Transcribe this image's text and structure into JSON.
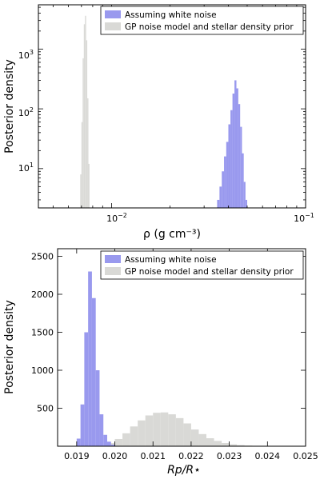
{
  "chart_data": [
    {
      "type": "bar",
      "subtype": "histogram",
      "xscale": "log",
      "yscale": "log",
      "xlabel": "ρ (g cm⁻³)",
      "ylabel": "Posterior density",
      "xlim": [
        0.0042,
        0.1
      ],
      "ylim": [
        2.2,
        5500
      ],
      "xticks": [
        {
          "value": 0.01,
          "base": "10",
          "exp": "−2"
        },
        {
          "value": 0.1,
          "base": "10",
          "exp": "−1"
        }
      ],
      "yticks": [
        {
          "value": 10,
          "base": "10",
          "exp": "1"
        },
        {
          "value": 100,
          "base": "10",
          "exp": "2"
        },
        {
          "value": 1000,
          "base": "10",
          "exp": "3"
        }
      ],
      "legend_position": "top-right",
      "series": [
        {
          "name": "Assuming white noise",
          "color": "#9999ee",
          "x": [
            0.0355,
            0.0365,
            0.0375,
            0.0385,
            0.0395,
            0.0405,
            0.0415,
            0.0425,
            0.0435,
            0.0445,
            0.0455,
            0.0465,
            0.0475,
            0.0485,
            0.0495
          ],
          "values": [
            3,
            5,
            9,
            16,
            28,
            55,
            95,
            180,
            300,
            220,
            120,
            50,
            18,
            6,
            3
          ]
        },
        {
          "name": "GP noise model and stellar density prior",
          "color": "#d9d9d6",
          "x": [
            0.00695,
            0.00705,
            0.00715,
            0.00725,
            0.00735,
            0.00745,
            0.00755,
            0.00765
          ],
          "values": [
            8,
            60,
            700,
            2600,
            3600,
            1400,
            150,
            12
          ]
        }
      ]
    },
    {
      "type": "bar",
      "subtype": "histogram",
      "xscale": "linear",
      "yscale": "linear",
      "xlabel": "Rp/R⋆",
      "ylabel": "Posterior density",
      "xlim": [
        0.0185,
        0.025
      ],
      "ylim": [
        0,
        2600
      ],
      "xticks": [
        "0.019",
        "0.020",
        "0.021",
        "0.022",
        "0.023",
        "0.024",
        "0.025"
      ],
      "yticks": [
        "500",
        "1000",
        "1500",
        "2000",
        "2500"
      ],
      "legend_position": "top-right",
      "series": [
        {
          "name": "Assuming white noise",
          "color": "#9999ee",
          "x": [
            0.01905,
            0.01915,
            0.01925,
            0.01935,
            0.01945,
            0.01955,
            0.01965,
            0.01975,
            0.01985,
            0.01995
          ],
          "values": [
            100,
            550,
            1500,
            2300,
            1950,
            1000,
            420,
            150,
            60,
            20
          ]
        },
        {
          "name": "GP noise model and stellar density prior",
          "color": "#d9d9d6",
          "x": [
            0.0195,
            0.0197,
            0.0199,
            0.0201,
            0.0203,
            0.0205,
            0.0207,
            0.0209,
            0.0211,
            0.0213,
            0.0215,
            0.0217,
            0.0219,
            0.0221,
            0.0223,
            0.0225,
            0.0227,
            0.0229,
            0.0231,
            0.0233,
            0.0235,
            0.0237,
            0.0239,
            0.0241
          ],
          "values": [
            3,
            12,
            40,
            95,
            170,
            260,
            340,
            405,
            440,
            445,
            420,
            370,
            300,
            220,
            160,
            105,
            70,
            42,
            25,
            14,
            8,
            4,
            2,
            1
          ]
        }
      ]
    }
  ]
}
